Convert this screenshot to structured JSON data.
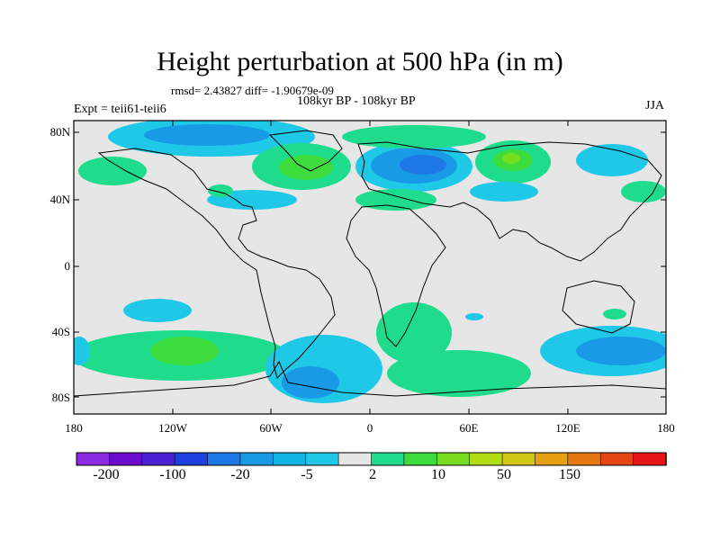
{
  "header": {
    "title": "Height perturbation at 500 hPa (in m)",
    "stats": "rmsd= 2.43827 diff= -1.90679e-09",
    "subtitle": "108kyr BP - 108kyr BP",
    "experiment": "Expt = teii61-teii6",
    "season": "JJA"
  },
  "axes": {
    "y_ticks": [
      "80N",
      "40N",
      "0",
      "40S",
      "80S"
    ],
    "x_ticks": [
      "180",
      "120W",
      "60W",
      "0",
      "60E",
      "120E",
      "180"
    ]
  },
  "colorbar": {
    "labels": [
      "-200",
      "-100",
      "-20",
      "-5",
      "2",
      "10",
      "50",
      "150"
    ],
    "colors": [
      "#8a2be2",
      "#6a0dcc",
      "#4b1fd6",
      "#1e40e0",
      "#1e78e6",
      "#189ae6",
      "#12b4e6",
      "#1ec8e6",
      "#e6e6e6",
      "#1edc8c",
      "#3cdc3c",
      "#78dc1e",
      "#b4dc14",
      "#d2c814",
      "#e6a014",
      "#e67814",
      "#e64614",
      "#e61414"
    ]
  },
  "colors": {
    "ocean_bg": "#e6e6e6",
    "coast": "#000000",
    "neg_light": "#1ec8e6",
    "neg_mid": "#189ae6",
    "neg_dark": "#1e78e6",
    "pos_light": "#1edc8c",
    "pos_mid": "#3cdc3c",
    "pos_high": "#78dc1e"
  }
}
